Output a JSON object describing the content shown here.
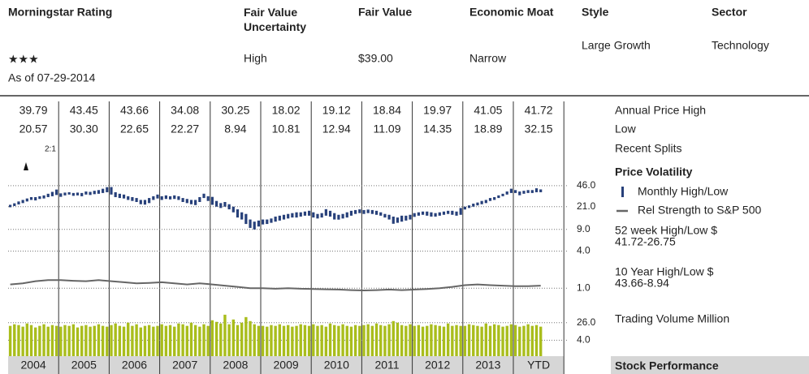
{
  "header": {
    "columns": [
      {
        "label": "Morningstar Rating",
        "value": "★★★",
        "note": "As of  07-29-2014"
      },
      {
        "label": "Fair Value Uncertainty",
        "value": "High"
      },
      {
        "label": "Fair Value",
        "value": "$39.00"
      },
      {
        "label": "Economic Moat",
        "value": "Narrow"
      },
      {
        "label": "Style",
        "value": "Large Growth"
      },
      {
        "label": "Sector",
        "value": "Technology"
      }
    ]
  },
  "table": {
    "years": [
      "2004",
      "2005",
      "2006",
      "2007",
      "2008",
      "2009",
      "2010",
      "2011",
      "2012",
      "2013",
      "YTD"
    ],
    "rows": [
      [
        "39.79",
        "43.45",
        "43.66",
        "34.08",
        "30.25",
        "18.02",
        "19.12",
        "18.84",
        "19.97",
        "41.05",
        "41.72"
      ],
      [
        "20.57",
        "30.30",
        "22.65",
        "22.27",
        "8.94",
        "10.81",
        "12.94",
        "11.09",
        "14.35",
        "18.89",
        "32.15"
      ]
    ],
    "row_labels": [
      "Annual Price High",
      "Low",
      "Recent Splits"
    ],
    "split": "2:1",
    "footer": "Stock Performance"
  },
  "side": {
    "title": "Price Volatility",
    "week52_label": "52 week High/Low $",
    "week52_value": "41.72-26.75",
    "year10_label": "10 Year High/Low $",
    "year10_value": "43.66-8.94",
    "volume_label": "Trading Volume Million"
  },
  "chart_data": [
    {
      "type": "range",
      "log_scale": true,
      "ylim": [
        0.7,
        70
      ],
      "yticks": [
        {
          "value": 46,
          "label": "46.0"
        },
        {
          "value": 21,
          "label": "21.0"
        },
        {
          "value": 9,
          "label": "9.0"
        },
        {
          "value": 4,
          "label": "4.0"
        },
        {
          "value": 1,
          "label": "1.0"
        }
      ],
      "grid": true,
      "series": [
        {
          "name": "Monthly High/Low",
          "color": "#27407a",
          "high": [
            22.5,
            23.8,
            25.5,
            27,
            28.5,
            30,
            30,
            31,
            32,
            34,
            36.5,
            39.79,
            34.5,
            35.5,
            36,
            35,
            35.5,
            35,
            37,
            36.5,
            38,
            39,
            41,
            43.45,
            43.66,
            36,
            34,
            33,
            31,
            30,
            29,
            27,
            27,
            29,
            31,
            33,
            31,
            32,
            31,
            32,
            31,
            29,
            28,
            27,
            27,
            30,
            34.08,
            31,
            30.25,
            26,
            24,
            25,
            23,
            21,
            19,
            17,
            16,
            13,
            12,
            12.5,
            13,
            13,
            13.5,
            14.5,
            15,
            15.5,
            16,
            16.5,
            17,
            17,
            17.5,
            18.02,
            17,
            16,
            16.5,
            19.12,
            18,
            16.5,
            15.5,
            16,
            17,
            18,
            18.5,
            19,
            18.5,
            18.84,
            18.5,
            18,
            17,
            16,
            15.5,
            14.5,
            14,
            15,
            15,
            15.5,
            16.5,
            17,
            17.5,
            17.5,
            17,
            16.5,
            17,
            17.5,
            18,
            18,
            17.5,
            19.97,
            21,
            22,
            23.5,
            24.5,
            26,
            27,
            29,
            30,
            32,
            34,
            37,
            41.05,
            39,
            37,
            38,
            39,
            39,
            41.72,
            40
          ],
          "low": [
            20.57,
            21.5,
            22.8,
            24,
            25.5,
            27,
            26.5,
            28,
            28.5,
            30,
            31,
            32.5,
            30.3,
            32,
            33,
            31.5,
            32,
            31,
            33,
            32.5,
            33.5,
            34,
            35,
            36,
            33,
            30,
            29,
            28.5,
            27,
            26,
            25,
            23,
            22.65,
            24,
            27,
            28.5,
            27,
            28,
            27.5,
            28,
            27,
            25,
            24,
            23,
            22.27,
            25,
            29,
            26,
            22.5,
            21,
            20,
            21,
            19,
            17,
            14,
            13,
            11,
            9.5,
            8.94,
            10,
            10.81,
            11,
            11.5,
            12,
            12.5,
            13,
            13.5,
            14,
            14,
            14.5,
            15,
            15,
            14,
            13.5,
            14,
            15,
            14.5,
            13,
            12.94,
            13.5,
            14,
            15,
            16,
            16.5,
            16,
            16.5,
            16,
            15.5,
            15,
            14,
            13,
            11.09,
            11.5,
            12,
            12.5,
            13,
            14.35,
            15,
            15.5,
            15,
            14.5,
            14.5,
            15,
            15.5,
            16,
            15.5,
            15,
            15.5,
            18.89,
            20,
            21,
            22,
            23,
            24,
            26,
            27,
            29,
            31,
            33,
            35,
            35,
            32.15,
            34,
            35,
            35,
            36,
            36
          ]
        },
        {
          "name": "Rel Strength to S&P 500",
          "color": "#666666",
          "values": [
            1.15,
            1.2,
            1.3,
            1.35,
            1.35,
            1.32,
            1.3,
            1.35,
            1.3,
            1.25,
            1.2,
            1.22,
            1.25,
            1.2,
            1.15,
            1.2,
            1.15,
            1.1,
            1.05,
            1.0,
            1.0,
            0.98,
            1.0,
            0.98,
            0.97,
            0.96,
            0.95,
            0.93,
            0.92,
            0.93,
            0.95,
            0.93,
            0.95,
            0.97,
            1.0,
            1.05,
            1.12,
            1.15,
            1.12,
            1.1,
            1.08,
            1.08,
            1.1
          ]
        }
      ]
    },
    {
      "type": "bar",
      "ylim": [
        -16,
        41
      ],
      "yticks": [
        {
          "value": 26,
          "label": "26.0"
        },
        {
          "value": 4,
          "label": "4.0"
        }
      ],
      "grid": true,
      "color": "#a9bd1c",
      "values": [
        22,
        24,
        23,
        21,
        25,
        23,
        20,
        22,
        24,
        21,
        23,
        22,
        21,
        23,
        22,
        24,
        20,
        22,
        23,
        21,
        22,
        24,
        22,
        21,
        23,
        25,
        22,
        21,
        26,
        22,
        24,
        20,
        22,
        23,
        21,
        22,
        24,
        22,
        23,
        21,
        25,
        24,
        22,
        26,
        23,
        21,
        24,
        22,
        29,
        27,
        25,
        36,
        24,
        30,
        23,
        26,
        33,
        28,
        24,
        22,
        22,
        21,
        23,
        22,
        24,
        22,
        23,
        21,
        22,
        24,
        23,
        22,
        24,
        22,
        23,
        21,
        25,
        23,
        22,
        24,
        22,
        21,
        23,
        22,
        23,
        24,
        22,
        25,
        23,
        22,
        24,
        28,
        26,
        23,
        22,
        24,
        22,
        23,
        21,
        22,
        24,
        23,
        22,
        21,
        25,
        22,
        23,
        22,
        22,
        24,
        23,
        22,
        21,
        25,
        22,
        24,
        23,
        21,
        22,
        24,
        23,
        21,
        22,
        24,
        22,
        23,
        21
      ]
    }
  ]
}
